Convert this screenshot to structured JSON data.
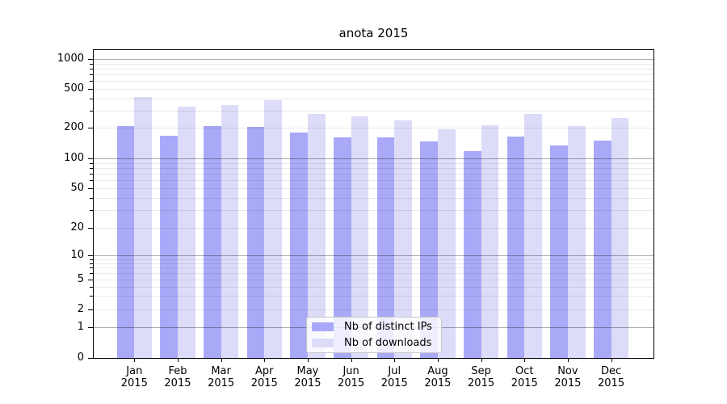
{
  "title": "anota 2015",
  "chart_data": {
    "type": "bar",
    "title": "anota 2015",
    "xlabel": "",
    "ylabel": "",
    "y_scale": "log-1-2-5 with zero baseline",
    "ylim": [
      0,
      1000
    ],
    "yticks": [
      0,
      1,
      2,
      5,
      10,
      20,
      50,
      100,
      200,
      500,
      1000
    ],
    "grid": true,
    "legend_position": "lower center",
    "year": "2015",
    "months": [
      "Jan",
      "Feb",
      "Mar",
      "Apr",
      "May",
      "Jun",
      "Jul",
      "Aug",
      "Sep",
      "Oct",
      "Nov",
      "Dec"
    ],
    "categories": [
      "Jan 2015",
      "Feb 2015",
      "Mar 2015",
      "Apr 2015",
      "May 2015",
      "Jun 2015",
      "Jul 2015",
      "Aug 2015",
      "Sep 2015",
      "Oct 2015",
      "Nov 2015",
      "Dec 2015"
    ],
    "series": [
      {
        "name": "Nb of distinct IPs",
        "color": "#a9a9f8",
        "values": [
          207,
          168,
          208,
          204,
          180,
          162,
          162,
          146,
          117,
          163,
          134,
          149
        ]
      },
      {
        "name": "Nb of downloads",
        "color": "#dcdcf8",
        "values": [
          416,
          328,
          340,
          381,
          280,
          260,
          240,
          195,
          213,
          276,
          207,
          252
        ]
      }
    ]
  },
  "colors": {
    "background": "#ffffff",
    "axis": "#000000",
    "major_grid": "rgba(0,0,0,0.33)",
    "minor_grid": "rgba(0,0,0,0.085)",
    "legend_border": "#c9c9c9",
    "text": "#000000"
  }
}
